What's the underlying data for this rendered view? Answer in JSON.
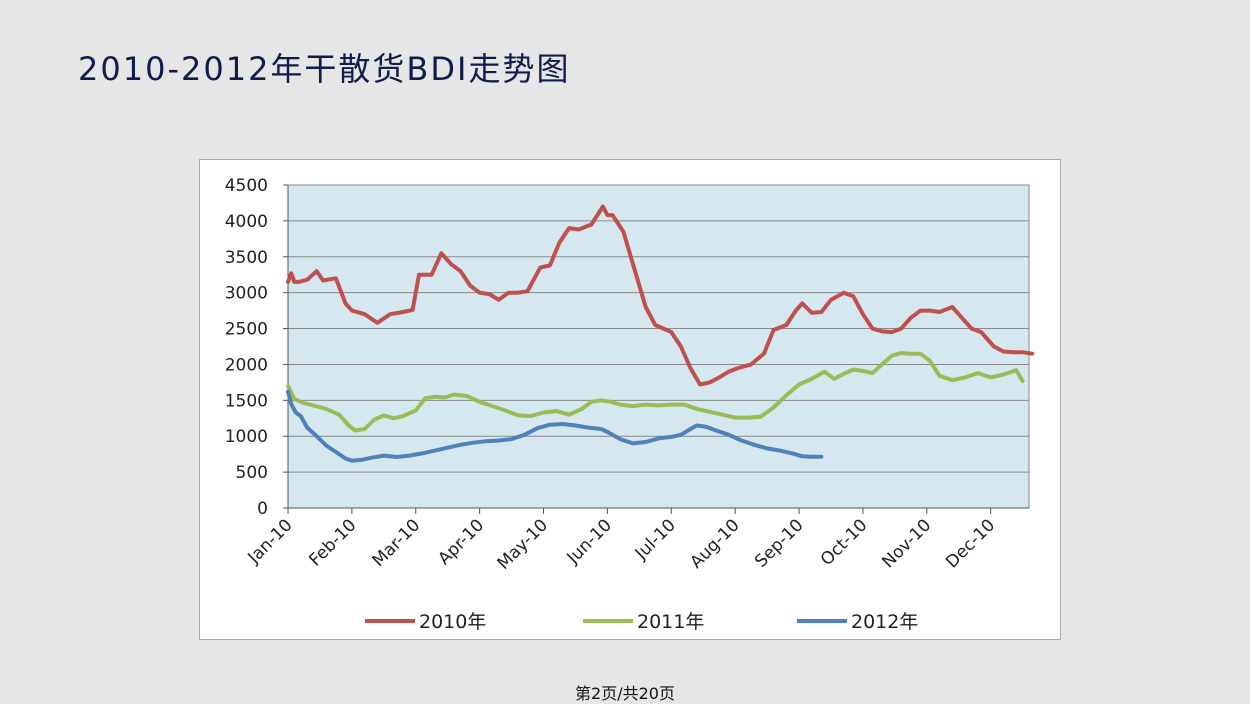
{
  "slide": {
    "title": "2010-2012年干散货BDI走势图",
    "footer": "第2页/共20页"
  },
  "chart_data": {
    "type": "line",
    "title": "",
    "xlabel": "",
    "ylabel": "",
    "ylim": [
      0,
      4500
    ],
    "yticks": [
      0,
      500,
      1000,
      1500,
      2000,
      2500,
      3000,
      3500,
      4000,
      4500
    ],
    "x_tick_labels": [
      "Jan-10",
      "Feb-10",
      "Mar-10",
      "Apr-10",
      "May-10",
      "Jun-10",
      "Jul-10",
      "Aug-10",
      "Sep-10",
      "Oct-10",
      "Nov-10",
      "Dec-10"
    ],
    "grid": true,
    "plot_background": "#d5e8f0",
    "legend_position": "bottom",
    "series": [
      {
        "name": "2010年",
        "color": "#c0504d",
        "x": [
          0,
          0.05,
          0.1,
          0.17,
          0.3,
          0.45,
          0.55,
          0.75,
          0.9,
          1.0,
          1.2,
          1.4,
          1.6,
          1.8,
          1.95,
          2.05,
          2.25,
          2.4,
          2.55,
          2.7,
          2.85,
          3.0,
          3.15,
          3.3,
          3.45,
          3.6,
          3.75,
          3.95,
          4.1,
          4.25,
          4.4,
          4.55,
          4.75,
          4.93,
          5.0,
          5.08,
          5.25,
          5.45,
          5.6,
          5.75,
          6.0,
          6.15,
          6.3,
          6.45,
          6.6,
          6.75,
          6.9,
          7.05,
          7.25,
          7.45,
          7.6,
          7.8,
          7.95,
          8.05,
          8.2,
          8.35,
          8.5,
          8.7,
          8.85,
          9.0,
          9.15,
          9.3,
          9.45,
          9.6,
          9.75,
          9.9,
          10.05,
          10.2,
          10.4,
          10.55,
          10.7,
          10.85,
          11.05,
          11.2,
          11.35,
          11.5,
          11.65
        ],
        "values": [
          3150,
          3270,
          3150,
          3150,
          3180,
          3300,
          3170,
          3200,
          2850,
          2750,
          2700,
          2580,
          2700,
          2730,
          2760,
          3250,
          3250,
          3550,
          3400,
          3300,
          3100,
          3000,
          2980,
          2900,
          3000,
          3000,
          3020,
          3350,
          3380,
          3700,
          3900,
          3880,
          3950,
          4200,
          4080,
          4080,
          3850,
          3250,
          2800,
          2550,
          2450,
          2250,
          1950,
          1720,
          1750,
          1820,
          1900,
          1950,
          2000,
          2150,
          2480,
          2550,
          2750,
          2850,
          2720,
          2730,
          2900,
          3000,
          2950,
          2700,
          2500,
          2460,
          2450,
          2500,
          2650,
          2750,
          2750,
          2730,
          2800,
          2650,
          2500,
          2450,
          2250,
          2180,
          2170,
          2170,
          2150
        ]
      },
      {
        "name": "2011年",
        "color": "#9bbb59",
        "x": [
          0,
          0.1,
          0.25,
          0.4,
          0.6,
          0.8,
          0.95,
          1.05,
          1.2,
          1.35,
          1.5,
          1.65,
          1.8,
          2.0,
          2.15,
          2.3,
          2.45,
          2.6,
          2.8,
          3.0,
          3.2,
          3.4,
          3.6,
          3.8,
          4.0,
          4.2,
          4.4,
          4.6,
          4.75,
          4.9,
          5.05,
          5.2,
          5.4,
          5.6,
          5.8,
          6.0,
          6.2,
          6.4,
          6.6,
          6.8,
          7.0,
          7.2,
          7.4,
          7.6,
          7.8,
          8.0,
          8.2,
          8.4,
          8.55,
          8.7,
          8.85,
          9.0,
          9.15,
          9.3,
          9.45,
          9.6,
          9.75,
          9.9,
          10.05,
          10.2,
          10.4,
          10.6,
          10.8,
          11.0,
          11.2,
          11.4,
          11.5
        ],
        "values": [
          1700,
          1520,
          1460,
          1430,
          1380,
          1300,
          1150,
          1080,
          1100,
          1230,
          1290,
          1250,
          1280,
          1360,
          1530,
          1550,
          1540,
          1580,
          1560,
          1480,
          1420,
          1360,
          1290,
          1280,
          1330,
          1350,
          1300,
          1380,
          1480,
          1500,
          1480,
          1440,
          1420,
          1440,
          1430,
          1440,
          1440,
          1380,
          1340,
          1300,
          1260,
          1260,
          1270,
          1400,
          1570,
          1720,
          1800,
          1900,
          1800,
          1870,
          1930,
          1910,
          1880,
          2000,
          2120,
          2160,
          2150,
          2150,
          2050,
          1840,
          1780,
          1820,
          1880,
          1820,
          1860,
          1920,
          1770
        ]
      },
      {
        "name": "2012年",
        "color": "#4f81bd",
        "x": [
          0,
          0.05,
          0.12,
          0.2,
          0.3,
          0.45,
          0.6,
          0.75,
          0.9,
          1.0,
          1.15,
          1.3,
          1.5,
          1.7,
          1.9,
          2.1,
          2.3,
          2.5,
          2.7,
          2.9,
          3.1,
          3.3,
          3.5,
          3.7,
          3.9,
          4.1,
          4.3,
          4.5,
          4.7,
          4.9,
          5.0,
          5.2,
          5.4,
          5.6,
          5.8,
          6.0,
          6.15,
          6.3,
          6.4,
          6.55,
          6.7,
          6.9,
          7.1,
          7.3,
          7.5,
          7.7,
          7.9,
          8.05,
          8.2,
          8.35
        ],
        "values": [
          1620,
          1450,
          1330,
          1280,
          1120,
          1000,
          870,
          780,
          690,
          660,
          670,
          700,
          730,
          710,
          730,
          760,
          800,
          840,
          880,
          910,
          930,
          940,
          960,
          1020,
          1110,
          1160,
          1170,
          1150,
          1120,
          1100,
          1060,
          960,
          900,
          920,
          970,
          990,
          1020,
          1100,
          1150,
          1130,
          1080,
          1020,
          940,
          880,
          830,
          800,
          760,
          720,
          715,
          715
        ]
      }
    ]
  }
}
